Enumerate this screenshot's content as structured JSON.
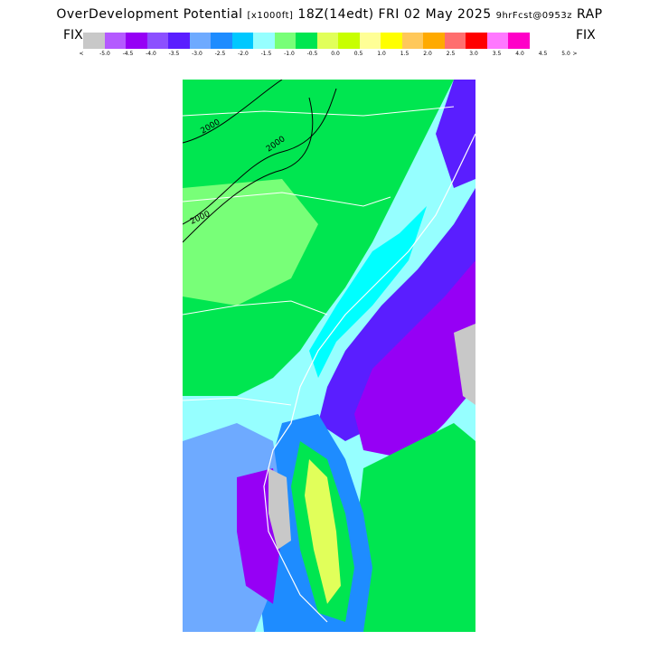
{
  "header": {
    "title_main": "OverDevelopment Potential",
    "units": "[x1000ft]",
    "run": "18Z(14edt) FRI 02 May 2025",
    "forecast": "9hrFcst@0953z",
    "model": "RAP"
  },
  "colorbar": {
    "left_label": "FIX",
    "right_label": "FIX",
    "left_arrow": "<",
    "right_arrow": ">",
    "colors": [
      "#c8c8c8",
      "#b45aff",
      "#9600f5",
      "#8c50ff",
      "#5a1eff",
      "#6eaaff",
      "#1e8cff",
      "#00c8ff",
      "#96ffff",
      "#78ff78",
      "#00e650",
      "#e1ff5a",
      "#c8ff00",
      "#ffff96",
      "#ffff00",
      "#ffc85a",
      "#ffaa00",
      "#ff6e6e",
      "#ff0000",
      "#ff78ff",
      "#ff00c8"
    ],
    "tick_labels": [
      "-5.0",
      "-4.5",
      "-4.0",
      "-3.5",
      "-3.0",
      "-2.5",
      "-2.0",
      "-1.5",
      "-1.0",
      "-0.5",
      "0.0",
      "0.5",
      "1.0",
      "1.5",
      "2.0",
      "2.5",
      "3.0",
      "3.5",
      "4.0",
      "4.5",
      "5.0"
    ]
  },
  "map": {
    "contour_labels": [
      "2000",
      "2000",
      "2000"
    ],
    "palette": {
      "land_green": "#00e650",
      "light_green": "#78ff78",
      "cyan": "#00ffff",
      "light_cyan": "#96ffff",
      "sky_blue": "#1e8cff",
      "light_blue": "#6eaaff",
      "blue": "#5a1eff",
      "purple": "#9600f5",
      "lavender": "#b45aff",
      "gray": "#c8c8c8",
      "yellow": "#e1ff5a"
    }
  }
}
